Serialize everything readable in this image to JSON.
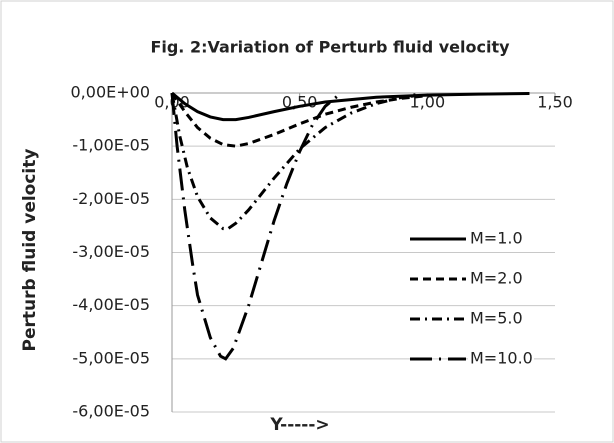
{
  "chart_data": {
    "type": "line",
    "title": "Fig. 2:Variation of Perturb  fluid velocity",
    "xlabel": "Y----->",
    "ylabel": "Perturb fluid velocity",
    "xlim": [
      0,
      1.5
    ],
    "ylim": [
      -6e-05,
      0
    ],
    "xticks": [
      {
        "value": 0,
        "label": "0,00"
      },
      {
        "value": 0.5,
        "label": "0,50"
      },
      {
        "value": 1,
        "label": "1,00"
      },
      {
        "value": 1.5,
        "label": "1,50"
      }
    ],
    "yticks": [
      {
        "value": 0,
        "label": "0,00E+00"
      },
      {
        "value": -1e-05,
        "label": "-1,00E-05"
      },
      {
        "value": -2e-05,
        "label": "-2,00E-05"
      },
      {
        "value": -3e-05,
        "label": "-3,00E-05"
      },
      {
        "value": -4e-05,
        "label": "-4,00E-05"
      },
      {
        "value": -5e-05,
        "label": "-5,00E-05"
      },
      {
        "value": -6e-05,
        "label": "-6,00E-05"
      }
    ],
    "grid": true,
    "legend": "right",
    "series": [
      {
        "name": "M=1.0",
        "color": "#000000",
        "dash": "none",
        "x": [
          0,
          0.05,
          0.1,
          0.15,
          0.2,
          0.25,
          0.3,
          0.4,
          0.5,
          0.6,
          0.8,
          1.0,
          1.2,
          1.4
        ],
        "values": [
          0,
          -2e-06,
          -3.5e-06,
          -4.5e-06,
          -5e-06,
          -5e-06,
          -4.6e-06,
          -3.5e-06,
          -2.5e-06,
          -1.7e-06,
          -8e-07,
          -4e-07,
          -2e-07,
          -1e-07
        ]
      },
      {
        "name": "M=2.0",
        "color": "#000000",
        "dash": "8,5",
        "x": [
          0,
          0.05,
          0.1,
          0.15,
          0.2,
          0.25,
          0.3,
          0.4,
          0.5,
          0.6,
          0.7,
          0.8,
          0.9,
          1.0
        ],
        "values": [
          0,
          -3.5e-06,
          -6.5e-06,
          -8.5e-06,
          -9.7e-06,
          -1e-05,
          -9.5e-06,
          -7.8e-06,
          -5.8e-06,
          -4e-06,
          -2.7e-06,
          -1.7e-06,
          -1e-06,
          -5e-07
        ]
      },
      {
        "name": "M=5.0",
        "color": "#000000",
        "dash": "10,5,2,5",
        "x": [
          0,
          0.03,
          0.06,
          0.1,
          0.15,
          0.2,
          0.22,
          0.25,
          0.3,
          0.4,
          0.5,
          0.6,
          0.7,
          0.8,
          0.9,
          0.97
        ],
        "values": [
          0,
          -8e-06,
          -1.4e-05,
          -1.95e-05,
          -2.35e-05,
          -2.55e-05,
          -2.55e-05,
          -2.45e-05,
          -2.2e-05,
          -1.6e-05,
          -1.05e-05,
          -6.5e-06,
          -3.8e-06,
          -2e-06,
          -8e-07,
          -2e-07
        ]
      },
      {
        "name": "M=10.0",
        "color": "#000000",
        "dash": "22,7,2,7",
        "x": [
          0,
          0.02,
          0.05,
          0.08,
          0.1,
          0.15,
          0.19,
          0.21,
          0.24,
          0.3,
          0.35,
          0.4,
          0.45,
          0.5,
          0.55,
          0.6,
          0.65
        ],
        "values": [
          0,
          -1e-05,
          -2.2e-05,
          -3.2e-05,
          -3.8e-05,
          -4.6e-05,
          -4.95e-05,
          -5e-05,
          -4.8e-05,
          -4e-05,
          -3.2e-05,
          -2.4e-05,
          -1.7e-05,
          -1.1e-05,
          -6e-06,
          -2.5e-06,
          -5e-07
        ]
      }
    ]
  }
}
